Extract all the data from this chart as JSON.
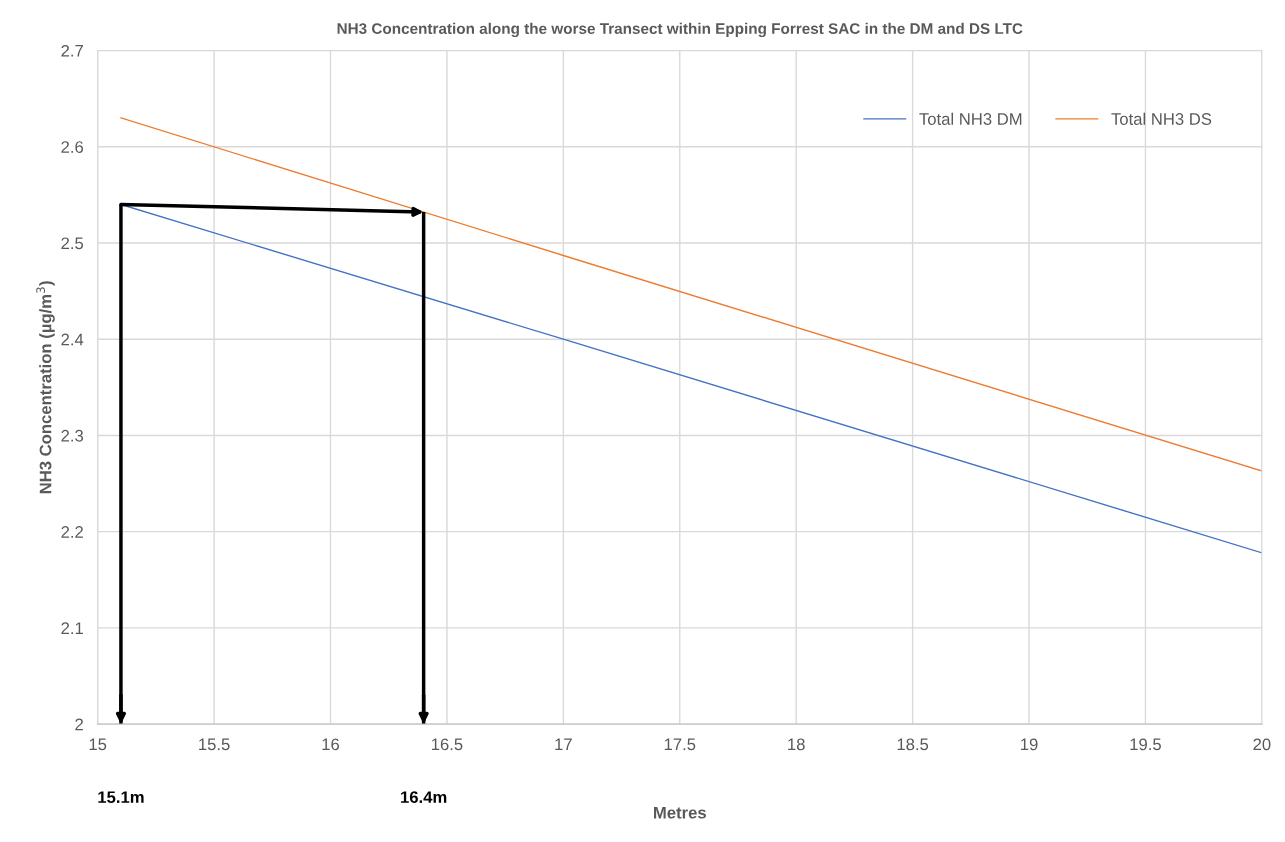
{
  "chart_data": {
    "type": "line",
    "title": "NH3 Concentration along the worse Transect within Epping Forrest SAC in the DM and DS LTC",
    "xlabel": "Metres",
    "ylabel": "NH3 Concentration (µg/m$^{3}$)",
    "x": [
      15.1,
      17,
      20
    ],
    "series": [
      {
        "name": "Total NH3 DM",
        "color": "#4472c4",
        "values": [
          2.54,
          2.4,
          2.178
        ]
      },
      {
        "name": "Total NH3 DS",
        "color": "#ed7d31",
        "values": [
          2.63,
          2.487,
          2.263
        ]
      }
    ],
    "xlim": [
      15,
      20
    ],
    "xticks": [
      15,
      15.5,
      16,
      16.5,
      17,
      17.5,
      18,
      18.5,
      19,
      19.5,
      20
    ],
    "ylim": [
      2,
      2.7
    ],
    "yticks": [
      2,
      2.1,
      2.2,
      2.3,
      2.4,
      2.5,
      2.6,
      2.7
    ],
    "grid": true,
    "legend": "top right",
    "marker": "none",
    "line_style": "solid",
    "ref_lines": [
      {
        "axis": "x",
        "value": 15.1,
        "color": "#000000"
      },
      {
        "axis": "x",
        "value": 16.4,
        "color": "#000000"
      }
    ],
    "annotations": [
      "15.1m",
      "16.4m"
    ]
  }
}
